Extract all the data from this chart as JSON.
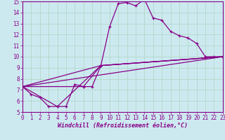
{
  "xlabel": "Windchill (Refroidissement éolien,°C)",
  "xlim": [
    0,
    23
  ],
  "ylim": [
    5,
    15
  ],
  "xticks": [
    0,
    1,
    2,
    3,
    4,
    5,
    6,
    7,
    8,
    9,
    10,
    11,
    12,
    13,
    14,
    15,
    16,
    17,
    18,
    19,
    20,
    21,
    22,
    23
  ],
  "yticks": [
    5,
    6,
    7,
    8,
    9,
    10,
    11,
    12,
    13,
    14,
    15
  ],
  "background_color": "#cde9f0",
  "grid_color": "#b0d9c8",
  "line_color": "#880088",
  "series_main_x": [
    0,
    1,
    2,
    3,
    4,
    5,
    6,
    7,
    8,
    9,
    10,
    11,
    12,
    13,
    14,
    15,
    16,
    17,
    18,
    19,
    20,
    21,
    22,
    23
  ],
  "series_main_y": [
    7.3,
    6.6,
    6.3,
    5.5,
    5.5,
    5.5,
    7.5,
    7.3,
    7.3,
    9.2,
    12.7,
    14.8,
    14.9,
    14.6,
    15.2,
    13.5,
    13.3,
    12.3,
    11.9,
    11.7,
    11.2,
    10.0,
    10.0,
    10.0
  ],
  "extra_lines": [
    {
      "x": [
        0,
        23
      ],
      "y": [
        7.3,
        10.0
      ]
    },
    {
      "x": [
        0,
        9,
        23
      ],
      "y": [
        7.3,
        9.2,
        10.0
      ]
    },
    {
      "x": [
        0,
        4,
        9,
        23
      ],
      "y": [
        7.3,
        5.5,
        9.2,
        10.0
      ]
    },
    {
      "x": [
        0,
        7,
        9,
        23
      ],
      "y": [
        7.3,
        7.3,
        9.2,
        10.0
      ]
    }
  ],
  "label_color": "#880088",
  "tick_color": "#880088",
  "spine_color": "#880088"
}
